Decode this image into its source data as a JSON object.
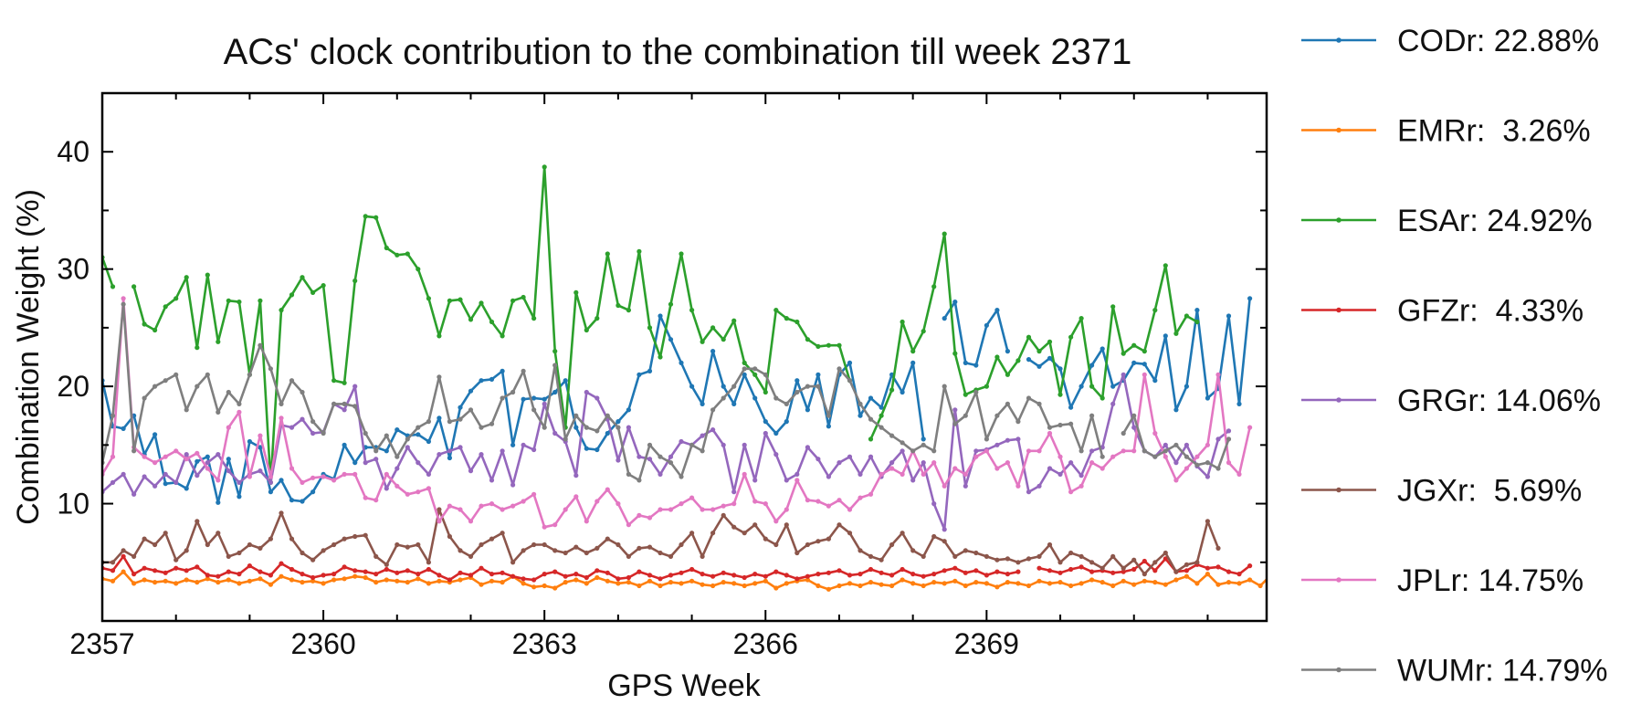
{
  "chart_data": {
    "type": "line",
    "title": "ACs' clock contribution to the combination till week 2371",
    "xlabel": "GPS Week",
    "ylabel": "Combination Weight (%)",
    "xlim": [
      2357,
      2372.8
    ],
    "ylim": [
      0,
      45
    ],
    "xticks": [
      2357,
      2360,
      2363,
      2366,
      2369
    ],
    "yticks": [
      10,
      20,
      30,
      40
    ],
    "legend_position": "right-outside",
    "grid": false,
    "x_start": 2357,
    "x_step": 0.142857,
    "series": [
      {
        "name": "CODr",
        "legend_label": "CODr: 22.88%",
        "color": "#1f77b4",
        "values": [
          20.5,
          16.6,
          16.4,
          17.5,
          14.2,
          15.9,
          11.7,
          11.8,
          11.3,
          13.6,
          14.0,
          10.1,
          13.8,
          10.6,
          15.3,
          14.8,
          11.0,
          12.0,
          10.3,
          10.2,
          11.0,
          12.5,
          12.1,
          15.0,
          13.5,
          14.8,
          14.8,
          14.5,
          16.3,
          15.8,
          15.9,
          15.3,
          17.3,
          13.9,
          18.2,
          19.6,
          20.5,
          20.6,
          21.3,
          15.0,
          18.9,
          19.0,
          18.9,
          19.5,
          20.5,
          16.5,
          14.7,
          14.6,
          16.0,
          17.0,
          18.0,
          21.0,
          21.3,
          26.0,
          24.0,
          22.0,
          20.0,
          18.5,
          23.0,
          20.0,
          18.5,
          21.0,
          19.0,
          17.0,
          16.0,
          17.0,
          20.5,
          18.0,
          21.0,
          16.6,
          21.0,
          22.0,
          17.5,
          19.0,
          18.2,
          21.0,
          19.5,
          22.0,
          15.5,
          null,
          25.8,
          27.2,
          22.0,
          21.8,
          25.2,
          26.5,
          23.0,
          null,
          22.3,
          21.7,
          22.4,
          21.5,
          18.2,
          20.0,
          21.8,
          23.2,
          20.0,
          20.5,
          22.0,
          21.9,
          20.5,
          24.3,
          18.0,
          20.0,
          26.5,
          19.0,
          19.8,
          26.0,
          18.5,
          27.5
        ]
      },
      {
        "name": "EMRr",
        "legend_label": "EMRr:  3.26%",
        "color": "#ff7f0e",
        "values": [
          3.6,
          3.4,
          4.2,
          3.2,
          3.5,
          3.3,
          3.4,
          3.2,
          3.5,
          3.3,
          3.6,
          3.3,
          3.5,
          3.2,
          3.4,
          3.6,
          3.1,
          3.8,
          3.5,
          3.3,
          3.4,
          3.2,
          3.5,
          3.6,
          3.8,
          3.7,
          3.3,
          3.5,
          3.4,
          3.3,
          3.6,
          3.2,
          3.4,
          3.3,
          3.5,
          3.7,
          3.1,
          3.4,
          3.3,
          3.8,
          3.2,
          2.9,
          3.0,
          2.8,
          3.3,
          3.5,
          3.2,
          3.7,
          3.4,
          3.2,
          3.3,
          3.0,
          3.4,
          3.0,
          3.3,
          3.2,
          3.4,
          3.1,
          3.0,
          3.3,
          3.2,
          3.0,
          3.2,
          3.4,
          2.8,
          3.2,
          3.4,
          3.5,
          3.0,
          2.7,
          3.0,
          3.2,
          3.0,
          3.3,
          3.1,
          3.0,
          3.5,
          3.2,
          3.0,
          3.3,
          3.2,
          3.4,
          3.0,
          3.3,
          3.2,
          2.9,
          3.3,
          3.2,
          3.0,
          3.4,
          3.2,
          3.3,
          3.0,
          3.2,
          3.5,
          3.3,
          3.0,
          3.4,
          3.1,
          3.4,
          3.3,
          3.1,
          3.5,
          3.8,
          3.2,
          4.0,
          3.1,
          3.3,
          3.2,
          3.5,
          3.0,
          3.9
        ]
      },
      {
        "name": "ESAr",
        "legend_label": "ESAr: 24.92%",
        "color": "#2ca02c",
        "values": [
          31.0,
          28.5,
          null,
          28.5,
          25.3,
          24.8,
          26.8,
          27.5,
          29.3,
          23.3,
          29.5,
          23.8,
          27.3,
          27.2,
          21.0,
          27.3,
          11.8,
          26.5,
          27.8,
          29.3,
          28.0,
          28.6,
          20.5,
          20.3,
          29.0,
          34.5,
          34.4,
          31.8,
          31.2,
          31.3,
          30.0,
          27.5,
          24.3,
          27.3,
          27.4,
          25.7,
          27.1,
          25.5,
          24.3,
          27.3,
          27.6,
          25.8,
          38.7,
          23.0,
          16.5,
          28.0,
          24.8,
          25.8,
          31.3,
          26.9,
          26.5,
          31.5,
          25.0,
          22.5,
          27.0,
          31.3,
          26.5,
          23.8,
          25.0,
          24.0,
          25.6,
          22.0,
          21.0,
          19.5,
          26.5,
          25.8,
          25.5,
          24.0,
          23.4,
          23.5,
          23.5,
          20.5,
          null,
          15.5,
          17.5,
          19.7,
          25.5,
          23.0,
          24.7,
          28.5,
          33.0,
          22.8,
          19.3,
          19.7,
          20.0,
          22.5,
          21.0,
          22.2,
          24.2,
          23.0,
          23.8,
          19.3,
          24.2,
          25.8,
          20.0,
          19.0,
          26.8,
          22.8,
          23.5,
          23.0,
          26.5,
          30.3,
          24.5,
          26.0,
          25.5
        ]
      },
      {
        "name": "GFZr",
        "legend_label": "GFZr:  4.33%",
        "color": "#d62728",
        "values": [
          4.5,
          4.3,
          5.5,
          4.0,
          4.5,
          4.3,
          4.1,
          4.5,
          4.3,
          4.6,
          3.9,
          3.8,
          4.2,
          4.0,
          4.7,
          4.2,
          3.9,
          4.9,
          4.4,
          4.0,
          3.7,
          3.9,
          4.0,
          4.6,
          4.3,
          4.2,
          4.0,
          4.4,
          4.1,
          4.3,
          4.0,
          4.4,
          3.9,
          3.5,
          4.1,
          3.9,
          4.5,
          4.0,
          4.1,
          3.8,
          3.6,
          3.5,
          4.0,
          4.2,
          3.8,
          4.0,
          3.7,
          4.3,
          4.1,
          3.6,
          3.7,
          4.2,
          3.9,
          3.6,
          3.9,
          4.1,
          4.4,
          4.0,
          3.8,
          4.1,
          3.9,
          3.7,
          4.0,
          3.8,
          4.2,
          3.9,
          3.6,
          3.8,
          4.0,
          4.1,
          4.3,
          3.9,
          4.0,
          4.4,
          4.1,
          3.9,
          4.4,
          4.0,
          3.8,
          4.0,
          4.3,
          4.5,
          4.1,
          4.3,
          3.9,
          4.2,
          4.0,
          4.2,
          null,
          4.5,
          4.3,
          4.1,
          4.4,
          4.6,
          4.2,
          4.3,
          4.1,
          4.2,
          4.4,
          5.1,
          4.3,
          5.3,
          4.2,
          4.3,
          4.8,
          4.5,
          4.6,
          4.2,
          4.0,
          4.7
        ]
      },
      {
        "name": "GRGr",
        "legend_label": "GRGr: 14.06%",
        "color": "#9467bd",
        "values": [
          11.0,
          11.8,
          12.5,
          10.8,
          12.3,
          11.5,
          12.5,
          11.8,
          14.2,
          12.4,
          13.5,
          14.2,
          12.8,
          11.8,
          12.5,
          12.8,
          11.8,
          16.7,
          16.5,
          17.2,
          16.0,
          16.1,
          18.5,
          18.0,
          20.0,
          13.5,
          13.8,
          11.3,
          13.0,
          14.8,
          13.5,
          12.5,
          14.2,
          14.5,
          14.8,
          12.8,
          14.2,
          12.0,
          14.5,
          11.6,
          15.0,
          14.6,
          18.5,
          16.0,
          15.3,
          12.4,
          19.5,
          19.0,
          17.2,
          13.7,
          16.5,
          14.0,
          13.8,
          12.5,
          14.0,
          15.3,
          15.0,
          15.8,
          16.3,
          15.0,
          11.0,
          15.0,
          12.0,
          16.0,
          14.2,
          12.0,
          12.5,
          14.8,
          13.8,
          12.3,
          13.5,
          14.0,
          12.5,
          14.0,
          12.3,
          13.5,
          14.5,
          12.0,
          13.5,
          10.0,
          7.8,
          18.0,
          11.5,
          14.5,
          14.6,
          15.0,
          15.4,
          15.5,
          11.0,
          11.5,
          13.0,
          12.5,
          13.5,
          12.4,
          14.5,
          14.8,
          18.5,
          21.0,
          16.5,
          14.5,
          14.0,
          15.0,
          13.5,
          15.0,
          13.2,
          12.3,
          15.5,
          16.2
        ]
      },
      {
        "name": "JGXr",
        "legend_label": "JGXr:  5.69%",
        "color": "#8c564b",
        "values": [
          5.0,
          5.0,
          6.0,
          5.5,
          7.0,
          6.5,
          7.5,
          5.2,
          6.0,
          8.5,
          6.5,
          7.5,
          5.5,
          5.8,
          6.5,
          6.2,
          7.0,
          9.2,
          7.0,
          5.8,
          5.2,
          6.0,
          6.5,
          7.0,
          7.2,
          7.3,
          5.5,
          4.8,
          6.5,
          6.3,
          6.5,
          5.0,
          9.5,
          7.2,
          6.0,
          5.5,
          6.5,
          7.0,
          7.5,
          5.0,
          6.0,
          6.5,
          6.5,
          6.0,
          5.8,
          6.3,
          5.8,
          6.2,
          7.0,
          6.5,
          5.5,
          6.2,
          6.3,
          5.8,
          5.5,
          6.5,
          7.5,
          5.5,
          7.5,
          9.0,
          8.0,
          7.5,
          8.2,
          7.0,
          6.5,
          8.2,
          5.8,
          6.5,
          6.8,
          7.0,
          8.2,
          7.5,
          6.0,
          5.5,
          5.2,
          6.5,
          7.5,
          6.0,
          5.5,
          7.2,
          6.8,
          5.5,
          6.0,
          5.8,
          5.5,
          5.2,
          5.3,
          5.0,
          5.3,
          5.5,
          6.5,
          5.0,
          5.8,
          5.5,
          5.0,
          4.5,
          5.5,
          4.5,
          5.2,
          4.0,
          5.0,
          5.8,
          4.2,
          4.8,
          5.0,
          8.5,
          6.2
        ]
      },
      {
        "name": "JPLr",
        "legend_label": "JPLr: 14.75%",
        "color": "#e377c2",
        "values": [
          12.5,
          14.0,
          27.5,
          14.8,
          14.0,
          13.5,
          14.0,
          14.5,
          13.8,
          14.3,
          13.0,
          12.0,
          16.5,
          17.8,
          12.3,
          15.8,
          12.3,
          17.3,
          13.0,
          11.8,
          12.2,
          12.3,
          12.0,
          12.5,
          12.5,
          10.5,
          10.3,
          12.5,
          11.5,
          10.8,
          11.0,
          11.3,
          8.5,
          9.8,
          9.5,
          8.5,
          9.8,
          10.0,
          9.5,
          9.8,
          10.2,
          10.8,
          8.0,
          8.2,
          9.5,
          10.6,
          8.5,
          10.2,
          11.2,
          10.0,
          8.2,
          9.0,
          8.8,
          9.5,
          9.5,
          10.0,
          10.5,
          9.5,
          9.5,
          9.8,
          10.0,
          12.5,
          10.2,
          10.0,
          8.5,
          9.5,
          12.0,
          10.3,
          10.2,
          9.8,
          10.3,
          9.5,
          10.5,
          10.8,
          12.5,
          13.0,
          12.5,
          14.5,
          12.5,
          13.5,
          11.5,
          13.0,
          12.5,
          14.0,
          14.5,
          13.0,
          13.5,
          11.5,
          14.5,
          14.5,
          16.0,
          14.0,
          11.0,
          11.5,
          13.5,
          13.0,
          14.0,
          14.5,
          14.5,
          21.0,
          16.0,
          14.0,
          12.0,
          13.0,
          14.0,
          15.0,
          21.0,
          13.5,
          12.5,
          16.5
        ]
      },
      {
        "name": "WUMr",
        "legend_label": "WUMr: 14.79%",
        "color": "#7f7f7f",
        "values": [
          13.5,
          17.5,
          27.0,
          14.5,
          19.0,
          20.0,
          20.5,
          21.0,
          18.0,
          20.0,
          21.0,
          17.8,
          19.5,
          18.5,
          21.0,
          23.5,
          21.5,
          18.5,
          20.5,
          19.5,
          17.0,
          16.0,
          18.5,
          18.5,
          18.3,
          16.0,
          14.5,
          15.8,
          14.0,
          15.5,
          16.5,
          17.0,
          20.8,
          17.0,
          17.2,
          18.0,
          16.5,
          16.8,
          19.0,
          19.5,
          21.3,
          18.0,
          16.5,
          21.8,
          15.5,
          17.5,
          16.5,
          16.2,
          17.5,
          16.5,
          12.5,
          12.0,
          15.0,
          14.0,
          13.5,
          12.3,
          15.0,
          14.5,
          18.0,
          19.0,
          20.0,
          21.5,
          21.5,
          21.0,
          19.0,
          18.5,
          19.5,
          20.0,
          20.0,
          17.5,
          21.5,
          20.5,
          18.5,
          17.2,
          16.5,
          15.8,
          15.2,
          14.5,
          15.0,
          14.5,
          20.0,
          16.8,
          17.5,
          19.5,
          15.5,
          17.5,
          18.5,
          17.0,
          19.0,
          18.5,
          16.5,
          16.7,
          16.8,
          14.5,
          17.5,
          14.0,
          null,
          16.0,
          17.5,
          14.5,
          14.0,
          14.5,
          15.0,
          14.0,
          13.3,
          13.5,
          13.0,
          15.5
        ]
      }
    ]
  }
}
